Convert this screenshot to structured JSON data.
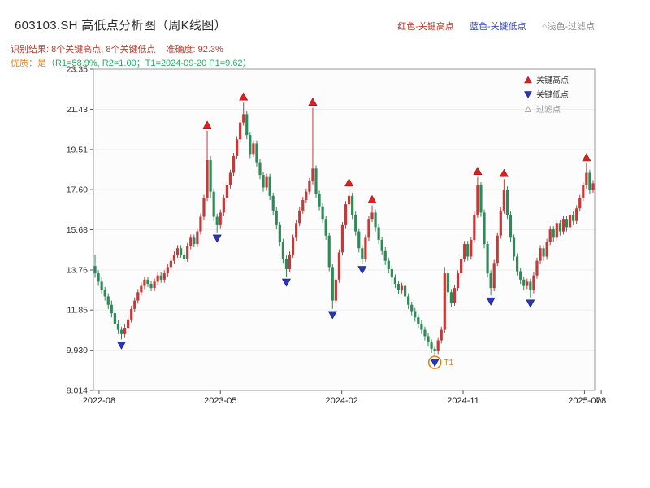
{
  "header": {
    "title": "603103.SH 高低点分析图（周K线图）",
    "legend_high": "红色-关键高点",
    "legend_low": "蓝色-关键低点",
    "legend_filtered": "○浅色-过滤点",
    "result_line": "识别结果: 8个关键高点, 8个关键低点",
    "accuracy": "准确度: 92.3%",
    "quality_prefix": "优质：是",
    "quality_detail": "（R1=58.9%, R2=1.00；T1=2024-09-20 P1=9.62）"
  },
  "chart_data": {
    "type": "candlestick",
    "symbol": "603103.SH",
    "period": "weekly",
    "title": "603103.SH 高低点分析图（周K线图）",
    "ylim": [
      8.014,
      23.35
    ],
    "y_ticks": [
      "8.014",
      "9.930",
      "11.85",
      "13.76",
      "15.68",
      "17.60",
      "19.51",
      "21.43",
      "23.35"
    ],
    "x_ticks": [
      {
        "week": 1.2,
        "label": "2022-08"
      },
      {
        "week": 38,
        "label": "2023-05"
      },
      {
        "week": 74.8,
        "label": "2024-02"
      },
      {
        "week": 111.6,
        "label": "2024-11"
      },
      {
        "week": 148.4,
        "label": "2025-07"
      },
      {
        "week": 153.5,
        "label": "08"
      }
    ],
    "in_legend": [
      {
        "label": "关键高点",
        "marker": "up",
        "color": "#e02020",
        "text_color": "#333333"
      },
      {
        "label": "关键低点",
        "marker": "down",
        "color": "#2a35b8",
        "text_color": "#333333"
      },
      {
        "label": "过滤点",
        "marker": "up-outline",
        "color": "#ffffff",
        "text_color": "#999999"
      }
    ],
    "colors": {
      "up": "#c23b3b",
      "down": "#2e8b57",
      "key_high": "#e02020",
      "key_low": "#2a35b8",
      "t1": "#e08214"
    },
    "key_highs": [
      {
        "week": 34,
        "price": 20.4
      },
      {
        "week": 45,
        "price": 21.75
      },
      {
        "week": 66,
        "price": 21.5
      },
      {
        "week": 77,
        "price": 17.65
      },
      {
        "week": 84,
        "price": 16.85
      },
      {
        "week": 116,
        "price": 18.2
      },
      {
        "week": 124,
        "price": 18.1
      },
      {
        "week": 149,
        "price": 18.85
      }
    ],
    "key_lows": [
      {
        "week": 8,
        "price": 10.45
      },
      {
        "week": 37,
        "price": 15.55
      },
      {
        "week": 58,
        "price": 13.45
      },
      {
        "week": 72,
        "price": 11.9
      },
      {
        "week": 81,
        "price": 14.05
      },
      {
        "week": 103,
        "price": 9.62
      },
      {
        "week": 120,
        "price": 12.55
      },
      {
        "week": 132,
        "price": 12.45
      }
    ],
    "t1": {
      "week": 103,
      "price": 9.62,
      "label": "T1"
    },
    "candles": [
      [
        13.95,
        14.5,
        13.4,
        13.6
      ],
      [
        13.6,
        13.75,
        13.0,
        13.2
      ],
      [
        13.2,
        13.4,
        12.6,
        12.8
      ],
      [
        12.8,
        12.95,
        12.3,
        12.5
      ],
      [
        12.5,
        12.65,
        11.9,
        12.1
      ],
      [
        12.1,
        12.3,
        11.5,
        11.7
      ],
      [
        11.7,
        11.85,
        11.0,
        11.2
      ],
      [
        11.2,
        11.35,
        10.7,
        10.9
      ],
      [
        10.9,
        11.05,
        10.45,
        10.7
      ],
      [
        10.7,
        11.2,
        10.55,
        11.0
      ],
      [
        11.0,
        11.6,
        10.85,
        11.4
      ],
      [
        11.4,
        12.05,
        11.25,
        11.9
      ],
      [
        11.9,
        12.45,
        11.75,
        12.3
      ],
      [
        12.3,
        12.85,
        12.15,
        12.7
      ],
      [
        12.7,
        13.15,
        12.55,
        13.0
      ],
      [
        13.0,
        13.45,
        12.85,
        13.3
      ],
      [
        13.3,
        13.45,
        12.95,
        13.1
      ],
      [
        13.1,
        13.25,
        12.75,
        12.9
      ],
      [
        12.9,
        13.35,
        12.75,
        13.2
      ],
      [
        13.2,
        13.65,
        13.05,
        13.5
      ],
      [
        13.5,
        13.65,
        13.15,
        13.3
      ],
      [
        13.3,
        13.75,
        13.15,
        13.6
      ],
      [
        13.6,
        14.05,
        13.45,
        13.9
      ],
      [
        13.9,
        14.35,
        13.75,
        14.2
      ],
      [
        14.2,
        14.65,
        14.05,
        14.5
      ],
      [
        14.5,
        14.95,
        14.35,
        14.8
      ],
      [
        14.8,
        14.95,
        14.35,
        14.5
      ],
      [
        14.5,
        14.65,
        14.15,
        14.3
      ],
      [
        14.3,
        15.05,
        14.15,
        14.9
      ],
      [
        14.9,
        15.45,
        14.75,
        15.3
      ],
      [
        15.3,
        15.45,
        14.85,
        15.0
      ],
      [
        15.0,
        15.75,
        14.85,
        15.6
      ],
      [
        15.6,
        16.45,
        15.45,
        16.3
      ],
      [
        16.3,
        17.35,
        16.15,
        17.2
      ],
      [
        17.2,
        20.4,
        17.05,
        19.0
      ],
      [
        19.0,
        19.2,
        17.2,
        17.5
      ],
      [
        17.5,
        17.65,
        16.1,
        16.3
      ],
      [
        16.3,
        16.45,
        15.55,
        15.9
      ],
      [
        15.9,
        16.65,
        15.75,
        16.5
      ],
      [
        16.5,
        17.35,
        16.35,
        17.2
      ],
      [
        17.2,
        17.95,
        17.05,
        17.8
      ],
      [
        17.8,
        18.55,
        17.65,
        18.4
      ],
      [
        18.4,
        19.35,
        18.25,
        19.2
      ],
      [
        19.2,
        20.15,
        19.05,
        20.0
      ],
      [
        20.0,
        20.95,
        19.85,
        20.8
      ],
      [
        20.8,
        21.75,
        20.65,
        21.2
      ],
      [
        21.2,
        21.35,
        20.0,
        20.2
      ],
      [
        20.2,
        20.35,
        19.1,
        19.3
      ],
      [
        19.3,
        19.95,
        19.15,
        19.8
      ],
      [
        19.8,
        19.95,
        18.7,
        18.9
      ],
      [
        18.9,
        19.05,
        18.1,
        18.3
      ],
      [
        18.3,
        18.45,
        17.5,
        17.7
      ],
      [
        17.7,
        18.35,
        17.55,
        18.2
      ],
      [
        18.2,
        18.35,
        17.1,
        17.3
      ],
      [
        17.3,
        17.45,
        16.4,
        16.6
      ],
      [
        16.6,
        16.75,
        15.7,
        15.9
      ],
      [
        15.9,
        16.05,
        14.9,
        15.1
      ],
      [
        15.1,
        15.25,
        14.1,
        14.3
      ],
      [
        14.3,
        14.45,
        13.45,
        13.8
      ],
      [
        13.8,
        14.65,
        13.65,
        14.5
      ],
      [
        14.5,
        15.45,
        14.35,
        15.3
      ],
      [
        15.3,
        16.15,
        15.15,
        16.0
      ],
      [
        16.0,
        16.75,
        15.85,
        16.6
      ],
      [
        16.6,
        17.25,
        16.45,
        17.1
      ],
      [
        17.1,
        17.65,
        16.95,
        17.5
      ],
      [
        17.5,
        18.15,
        17.35,
        18.0
      ],
      [
        18.0,
        21.5,
        17.85,
        18.6
      ],
      [
        18.6,
        18.75,
        17.2,
        17.4
      ],
      [
        17.4,
        17.55,
        16.6,
        16.8
      ],
      [
        16.8,
        16.95,
        16.0,
        16.2
      ],
      [
        16.2,
        16.35,
        15.2,
        15.4
      ],
      [
        15.4,
        15.55,
        13.7,
        13.9
      ],
      [
        13.9,
        14.05,
        11.9,
        12.3
      ],
      [
        12.3,
        13.45,
        12.15,
        13.3
      ],
      [
        13.3,
        14.75,
        13.15,
        14.6
      ],
      [
        14.6,
        16.05,
        14.45,
        15.9
      ],
      [
        15.9,
        17.05,
        15.75,
        16.9
      ],
      [
        16.9,
        17.65,
        16.75,
        17.3
      ],
      [
        17.3,
        17.45,
        16.2,
        16.4
      ],
      [
        16.4,
        16.55,
        15.4,
        15.6
      ],
      [
        15.6,
        15.75,
        14.6,
        14.8
      ],
      [
        14.8,
        14.95,
        14.05,
        14.3
      ],
      [
        14.3,
        15.45,
        14.15,
        15.3
      ],
      [
        15.3,
        16.35,
        15.15,
        16.2
      ],
      [
        16.2,
        16.85,
        16.05,
        16.5
      ],
      [
        16.5,
        16.65,
        15.6,
        15.8
      ],
      [
        15.8,
        15.95,
        15.0,
        15.2
      ],
      [
        15.2,
        15.35,
        14.5,
        14.7
      ],
      [
        14.7,
        14.85,
        14.0,
        14.2
      ],
      [
        14.2,
        14.35,
        13.6,
        13.8
      ],
      [
        13.8,
        13.95,
        13.2,
        13.4
      ],
      [
        13.4,
        13.55,
        12.9,
        13.1
      ],
      [
        13.1,
        13.25,
        12.6,
        12.8
      ],
      [
        12.8,
        13.15,
        12.65,
        13.0
      ],
      [
        13.0,
        13.15,
        12.3,
        12.5
      ],
      [
        12.5,
        12.65,
        11.9,
        12.1
      ],
      [
        12.1,
        12.25,
        11.6,
        11.8
      ],
      [
        11.8,
        11.95,
        11.3,
        11.5
      ],
      [
        11.5,
        11.65,
        11.0,
        11.2
      ],
      [
        11.2,
        11.35,
        10.7,
        10.9
      ],
      [
        10.9,
        11.05,
        10.4,
        10.6
      ],
      [
        10.6,
        10.75,
        10.1,
        10.3
      ],
      [
        10.3,
        10.45,
        9.8,
        10.0
      ],
      [
        10.0,
        10.15,
        9.62,
        9.9
      ],
      [
        9.9,
        10.55,
        9.75,
        10.4
      ],
      [
        10.4,
        11.05,
        10.25,
        10.9
      ],
      [
        10.9,
        13.9,
        10.75,
        13.6
      ],
      [
        13.6,
        13.75,
        12.5,
        12.7
      ],
      [
        12.7,
        12.85,
        12.0,
        12.2
      ],
      [
        12.2,
        13.05,
        12.05,
        12.9
      ],
      [
        12.9,
        13.75,
        12.75,
        13.6
      ],
      [
        13.6,
        14.45,
        13.45,
        14.3
      ],
      [
        14.3,
        15.15,
        14.15,
        15.0
      ],
      [
        15.0,
        15.15,
        14.2,
        14.4
      ],
      [
        14.4,
        15.35,
        14.25,
        15.2
      ],
      [
        15.2,
        16.55,
        15.05,
        16.4
      ],
      [
        16.4,
        18.2,
        16.25,
        17.8
      ],
      [
        17.8,
        17.95,
        16.3,
        16.5
      ],
      [
        16.5,
        16.65,
        14.8,
        15.0
      ],
      [
        15.0,
        15.15,
        13.4,
        13.6
      ],
      [
        13.6,
        13.75,
        12.55,
        12.9
      ],
      [
        12.9,
        14.25,
        12.75,
        14.1
      ],
      [
        14.1,
        15.55,
        13.95,
        15.4
      ],
      [
        15.4,
        16.75,
        15.25,
        16.6
      ],
      [
        16.6,
        18.1,
        16.45,
        17.6
      ],
      [
        17.6,
        17.75,
        16.2,
        16.4
      ],
      [
        16.4,
        16.55,
        15.1,
        15.3
      ],
      [
        15.3,
        15.45,
        14.2,
        14.4
      ],
      [
        14.4,
        14.55,
        13.5,
        13.7
      ],
      [
        13.7,
        13.85,
        13.1,
        13.3
      ],
      [
        13.3,
        13.45,
        12.8,
        13.0
      ],
      [
        13.0,
        13.35,
        12.85,
        13.2
      ],
      [
        13.2,
        13.35,
        12.45,
        12.8
      ],
      [
        12.8,
        13.65,
        12.65,
        13.5
      ],
      [
        13.5,
        14.35,
        13.35,
        14.2
      ],
      [
        14.2,
        14.95,
        14.05,
        14.8
      ],
      [
        14.8,
        14.95,
        14.2,
        14.4
      ],
      [
        14.4,
        15.25,
        14.25,
        15.1
      ],
      [
        15.1,
        15.85,
        14.95,
        15.7
      ],
      [
        15.7,
        15.85,
        15.1,
        15.3
      ],
      [
        15.3,
        16.15,
        15.15,
        16.0
      ],
      [
        16.0,
        16.15,
        15.4,
        15.6
      ],
      [
        15.6,
        16.35,
        15.45,
        16.2
      ],
      [
        16.2,
        16.35,
        15.6,
        15.8
      ],
      [
        15.8,
        16.55,
        15.65,
        16.4
      ],
      [
        16.4,
        16.55,
        15.9,
        16.1
      ],
      [
        16.1,
        16.85,
        15.95,
        16.7
      ],
      [
        16.7,
        17.35,
        16.55,
        17.2
      ],
      [
        17.2,
        17.95,
        17.05,
        17.8
      ],
      [
        17.8,
        18.85,
        17.65,
        18.4
      ],
      [
        18.4,
        18.55,
        17.4,
        17.6
      ],
      [
        17.6,
        18.05,
        17.45,
        17.9
      ]
    ]
  }
}
